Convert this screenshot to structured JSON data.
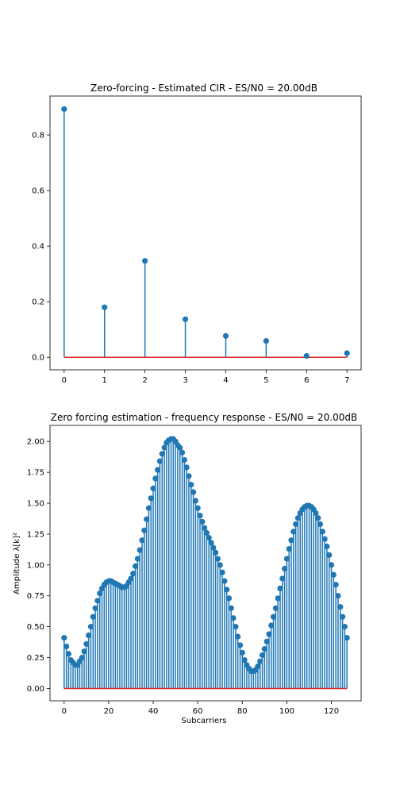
{
  "chart_data": [
    {
      "type": "stem",
      "title": "Zero-forcing - Estimated CIR - ES/N0 = 20.00dB",
      "xlabel": "",
      "ylabel": "",
      "xlim": [
        -0.35,
        7.35
      ],
      "ylim": [
        -0.045,
        0.94
      ],
      "xticks": [
        0,
        1,
        2,
        3,
        4,
        5,
        6,
        7
      ],
      "xtick_labels": [
        "0",
        "1",
        "2",
        "3",
        "4",
        "5",
        "6",
        "7"
      ],
      "yticks": [
        0.0,
        0.2,
        0.4,
        0.6,
        0.8
      ],
      "ytick_labels": [
        "0.0",
        "0.2",
        "0.4",
        "0.6",
        "0.8"
      ],
      "x": [
        0,
        1,
        2,
        3,
        4,
        5,
        6,
        7
      ],
      "values": [
        0.893,
        0.18,
        0.347,
        0.137,
        0.077,
        0.059,
        0.005,
        0.015
      ],
      "stem_color": "#1f77b4",
      "baseline_color": "#d62728"
    },
    {
      "type": "stem",
      "title": "Zero forcing estimation - frequency response - ES/N0 = 20.00dB",
      "xlabel": "Subcarriers",
      "ylabel": "Amplitude λ[k]²",
      "xlim": [
        -6.35,
        133.35
      ],
      "ylim": [
        -0.1,
        2.13
      ],
      "xticks": [
        0,
        20,
        40,
        60,
        80,
        100,
        120
      ],
      "xtick_labels": [
        "0",
        "20",
        "40",
        "60",
        "80",
        "100",
        "120"
      ],
      "yticks": [
        0.0,
        0.25,
        0.5,
        0.75,
        1.0,
        1.25,
        1.5,
        1.75,
        2.0
      ],
      "ytick_labels": [
        "0.00",
        "0.25",
        "0.50",
        "0.75",
        "1.00",
        "1.25",
        "1.50",
        "1.75",
        "2.00"
      ],
      "x": [
        0,
        1,
        2,
        3,
        4,
        5,
        6,
        7,
        8,
        9,
        10,
        11,
        12,
        13,
        14,
        15,
        16,
        17,
        18,
        19,
        20,
        21,
        22,
        23,
        24,
        25,
        26,
        27,
        28,
        29,
        30,
        31,
        32,
        33,
        34,
        35,
        36,
        37,
        38,
        39,
        40,
        41,
        42,
        43,
        44,
        45,
        46,
        47,
        48,
        49,
        50,
        51,
        52,
        53,
        54,
        55,
        56,
        57,
        58,
        59,
        60,
        61,
        62,
        63,
        64,
        65,
        66,
        67,
        68,
        69,
        70,
        71,
        72,
        73,
        74,
        75,
        76,
        77,
        78,
        79,
        80,
        81,
        82,
        83,
        84,
        85,
        86,
        87,
        88,
        89,
        90,
        91,
        92,
        93,
        94,
        95,
        96,
        97,
        98,
        99,
        100,
        101,
        102,
        103,
        104,
        105,
        106,
        107,
        108,
        109,
        110,
        111,
        112,
        113,
        114,
        115,
        116,
        117,
        118,
        119,
        120,
        121,
        122,
        123,
        124,
        125,
        126,
        127
      ],
      "values": [
        0.41,
        0.34,
        0.28,
        0.23,
        0.21,
        0.19,
        0.19,
        0.22,
        0.25,
        0.3,
        0.36,
        0.43,
        0.5,
        0.58,
        0.65,
        0.71,
        0.77,
        0.81,
        0.84,
        0.86,
        0.87,
        0.87,
        0.86,
        0.85,
        0.84,
        0.83,
        0.82,
        0.82,
        0.83,
        0.86,
        0.89,
        0.93,
        0.99,
        1.05,
        1.12,
        1.2,
        1.28,
        1.37,
        1.46,
        1.54,
        1.62,
        1.7,
        1.77,
        1.84,
        1.9,
        1.95,
        1.99,
        2.01,
        2.02,
        2.02,
        2.0,
        1.97,
        1.95,
        1.91,
        1.85,
        1.79,
        1.72,
        1.65,
        1.59,
        1.52,
        1.46,
        1.4,
        1.35,
        1.3,
        1.26,
        1.22,
        1.18,
        1.14,
        1.1,
        1.05,
        1.0,
        0.94,
        0.87,
        0.8,
        0.73,
        0.65,
        0.57,
        0.5,
        0.42,
        0.35,
        0.29,
        0.23,
        0.19,
        0.16,
        0.14,
        0.14,
        0.15,
        0.18,
        0.22,
        0.27,
        0.32,
        0.38,
        0.44,
        0.51,
        0.58,
        0.65,
        0.73,
        0.81,
        0.89,
        0.97,
        1.05,
        1.13,
        1.2,
        1.27,
        1.33,
        1.38,
        1.42,
        1.45,
        1.47,
        1.48,
        1.48,
        1.47,
        1.45,
        1.42,
        1.38,
        1.33,
        1.27,
        1.21,
        1.15,
        1.08,
        1.0,
        0.92,
        0.84,
        0.75,
        0.66,
        0.58,
        0.5,
        0.41
      ],
      "stem_color": "#1f77b4",
      "baseline_color": "#d62728"
    }
  ]
}
